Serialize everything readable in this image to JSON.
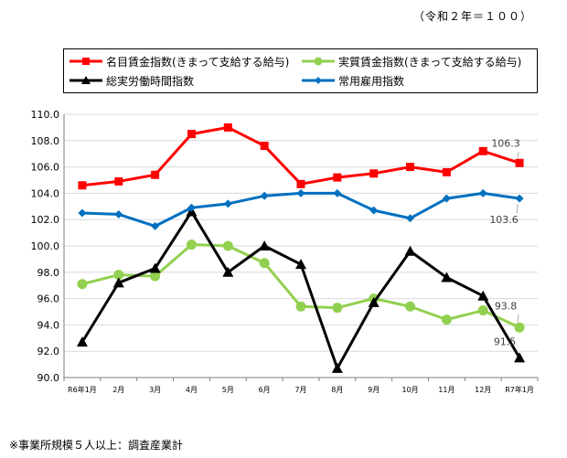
{
  "header_note": "（令和２年＝１００）",
  "footnote": "※事業所規模５人以上：調査産業計",
  "chart_data": {
    "type": "line",
    "title": "",
    "xlabel": "",
    "ylabel": "",
    "categories": [
      "R6年1月",
      "2月",
      "3月",
      "4月",
      "5月",
      "6月",
      "7月",
      "8月",
      "9月",
      "10月",
      "11月",
      "12月",
      "R7年1月"
    ],
    "ylim": [
      90.0,
      110.0
    ],
    "yticks": [
      "110.0",
      "108.0",
      "106.0",
      "104.0",
      "102.0",
      "100.0",
      "98.0",
      "96.0",
      "94.0",
      "92.0",
      "90.0"
    ],
    "grid": true,
    "legend_position": "top",
    "series": [
      {
        "name": "名目賃金指数(きまって支給する給与)",
        "color": "#ff0000",
        "marker": "square",
        "values": [
          104.6,
          104.9,
          105.4,
          108.5,
          109.0,
          107.6,
          104.7,
          105.2,
          105.5,
          106.0,
          105.6,
          107.2,
          106.3
        ],
        "end_label": "106.3"
      },
      {
        "name": "実質賃金指数(きまって支給する給与)",
        "color": "#92d050",
        "marker": "circle",
        "values": [
          97.1,
          97.8,
          97.7,
          100.1,
          100.0,
          98.7,
          95.4,
          95.3,
          96.0,
          95.4,
          94.4,
          95.1,
          93.8
        ],
        "end_label": "93.8"
      },
      {
        "name": "総実労働時間指数",
        "color": "#000000",
        "marker": "triangle",
        "values": [
          92.7,
          97.2,
          98.3,
          102.6,
          98.0,
          100.0,
          98.6,
          90.7,
          95.7,
          99.6,
          97.6,
          96.2,
          91.5
        ],
        "end_label": "91.5"
      },
      {
        "name": "常用雇用指数",
        "color": "#0070c0",
        "marker": "diamond",
        "values": [
          102.5,
          102.4,
          101.5,
          102.9,
          103.2,
          103.8,
          104.0,
          104.0,
          102.7,
          102.1,
          103.6,
          104.0,
          103.6
        ],
        "end_label": "103.6"
      }
    ]
  }
}
